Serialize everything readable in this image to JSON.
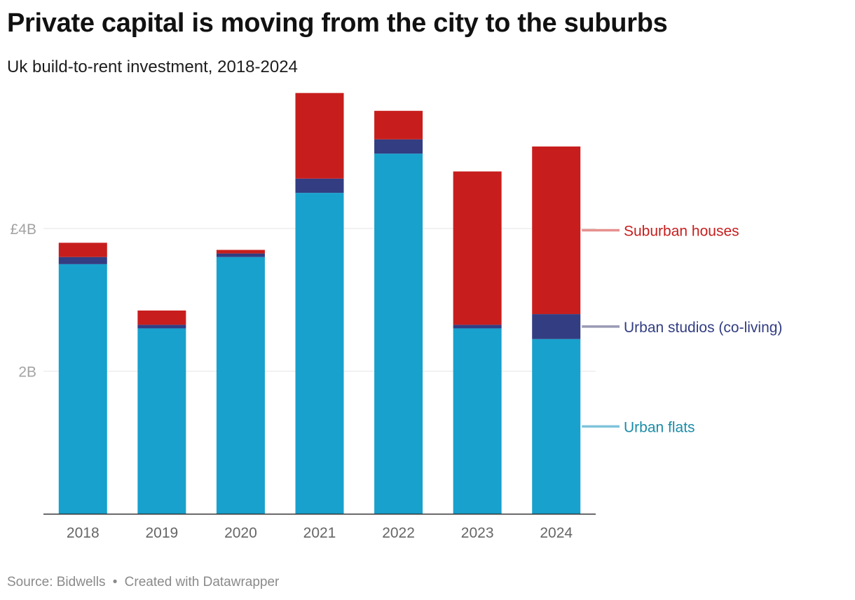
{
  "header": {
    "title": "Private capital is moving from the city to the suburbs",
    "subtitle": "Uk build-to-rent investment, 2018-2024"
  },
  "footer": {
    "source": "Source: Bidwells",
    "separator": "•",
    "credit": "Created with Datawrapper"
  },
  "chart_data": {
    "type": "bar",
    "stacked": true,
    "title": "Private capital is moving from the city to the suburbs",
    "subtitle": "Uk build-to-rent investment, 2018-2024",
    "categories": [
      "2018",
      "2019",
      "2020",
      "2021",
      "2022",
      "2023",
      "2024"
    ],
    "series": [
      {
        "name": "Urban flats",
        "color": "#18a1cd",
        "label_color": "#1a8ca8",
        "legend_color": "#7fc3da",
        "values": [
          3.5,
          2.6,
          3.6,
          4.5,
          5.05,
          2.6,
          2.45
        ]
      },
      {
        "name": "Urban studios (co-living)",
        "color": "#323d82",
        "label_color": "#323d82",
        "legend_color": "#9a9ab5",
        "values": [
          0.1,
          0.05,
          0.05,
          0.2,
          0.2,
          0.05,
          0.35
        ]
      },
      {
        "name": "Suburban houses",
        "color": "#c71e1d",
        "label_color": "#c71e1d",
        "legend_color": "#e68f8f",
        "values": [
          0.2,
          0.2,
          0.05,
          1.2,
          0.4,
          2.15,
          2.35
        ]
      }
    ],
    "y_ticks": [
      {
        "value": 2,
        "label": "2B"
      },
      {
        "value": 4,
        "label": "£4B"
      }
    ],
    "ylim": [
      0,
      5.9
    ],
    "grid": true,
    "legend_placement": "right, inline labels"
  }
}
